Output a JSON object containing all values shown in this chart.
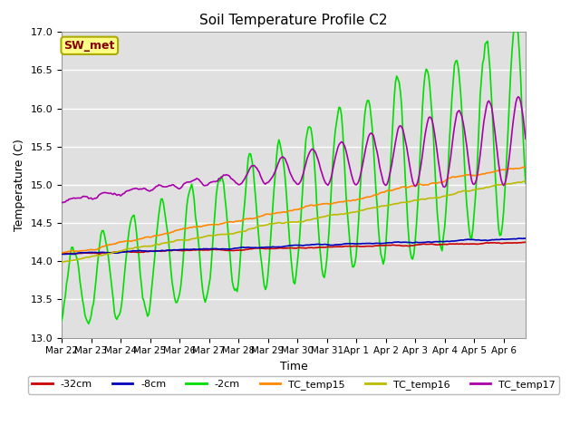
{
  "title": "Soil Temperature Profile C2",
  "xlabel": "Time",
  "ylabel": "Temperature (C)",
  "ylim": [
    13.0,
    17.0
  ],
  "yticks": [
    13.0,
    13.5,
    14.0,
    14.5,
    15.0,
    15.5,
    16.0,
    16.5,
    17.0
  ],
  "plot_bg": "#e0e0e0",
  "fig_bg": "#ffffff",
  "sw_met_label": "SW_met",
  "sw_met_bg": "#ffff88",
  "sw_met_border": "#aaaa00",
  "sw_met_text_color": "#880000",
  "series": {
    "-32cm": {
      "color": "#cc0000",
      "lw": 1.2
    },
    "-8cm": {
      "color": "#0000bb",
      "lw": 1.2
    },
    "-2cm": {
      "color": "#00dd00",
      "lw": 1.2
    },
    "TC_temp15": {
      "color": "#ff8800",
      "lw": 1.2
    },
    "TC_temp16": {
      "color": "#bbbb00",
      "lw": 1.2
    },
    "TC_temp17": {
      "color": "#aa00aa",
      "lw": 1.2
    }
  },
  "legend_labels": [
    "-32cm",
    "-8cm",
    "-2cm",
    "TC_temp15",
    "TC_temp16",
    "TC_temp17"
  ],
  "legend_colors": [
    "#cc0000",
    "#0000bb",
    "#00dd00",
    "#ff8800",
    "#bbbb00",
    "#aa00aa"
  ],
  "legend_styles": [
    "-",
    "-",
    "-",
    "-",
    "-",
    "-"
  ]
}
